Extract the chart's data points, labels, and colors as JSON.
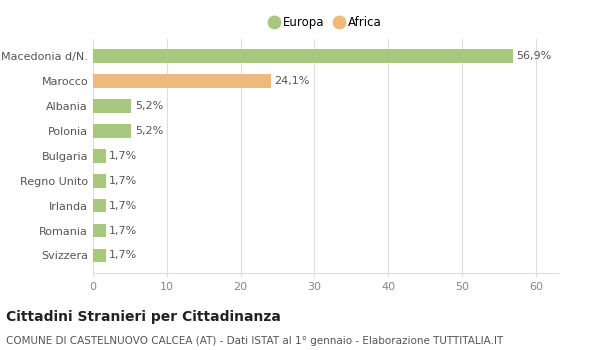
{
  "categories": [
    "Svizzera",
    "Romania",
    "Irlanda",
    "Regno Unito",
    "Bulgaria",
    "Polonia",
    "Albania",
    "Marocco",
    "Macedonia d/N."
  ],
  "values": [
    1.7,
    1.7,
    1.7,
    1.7,
    1.7,
    5.2,
    5.2,
    24.1,
    56.9
  ],
  "labels": [
    "1,7%",
    "1,7%",
    "1,7%",
    "1,7%",
    "1,7%",
    "5,2%",
    "5,2%",
    "24,1%",
    "56,9%"
  ],
  "colors": [
    "#a8c880",
    "#a8c880",
    "#a8c880",
    "#a8c880",
    "#a8c880",
    "#a8c880",
    "#a8c880",
    "#f0b87a",
    "#a8c880"
  ],
  "legend": [
    {
      "label": "Europa",
      "color": "#a8c880"
    },
    {
      "label": "Africa",
      "color": "#f0b87a"
    }
  ],
  "xlim": [
    0,
    63
  ],
  "xticks": [
    0,
    10,
    20,
    30,
    40,
    50,
    60
  ],
  "title": "Cittadini Stranieri per Cittadinanza",
  "subtitle": "COMUNE DI CASTELNUOVO CALCEA (AT) - Dati ISTAT al 1° gennaio - Elaborazione TUTTITALIA.IT",
  "background_color": "#ffffff",
  "grid_color": "#dddddd",
  "bar_height": 0.55,
  "label_fontsize": 8,
  "title_fontsize": 10,
  "subtitle_fontsize": 7.5,
  "ytick_fontsize": 8,
  "xtick_fontsize": 8
}
